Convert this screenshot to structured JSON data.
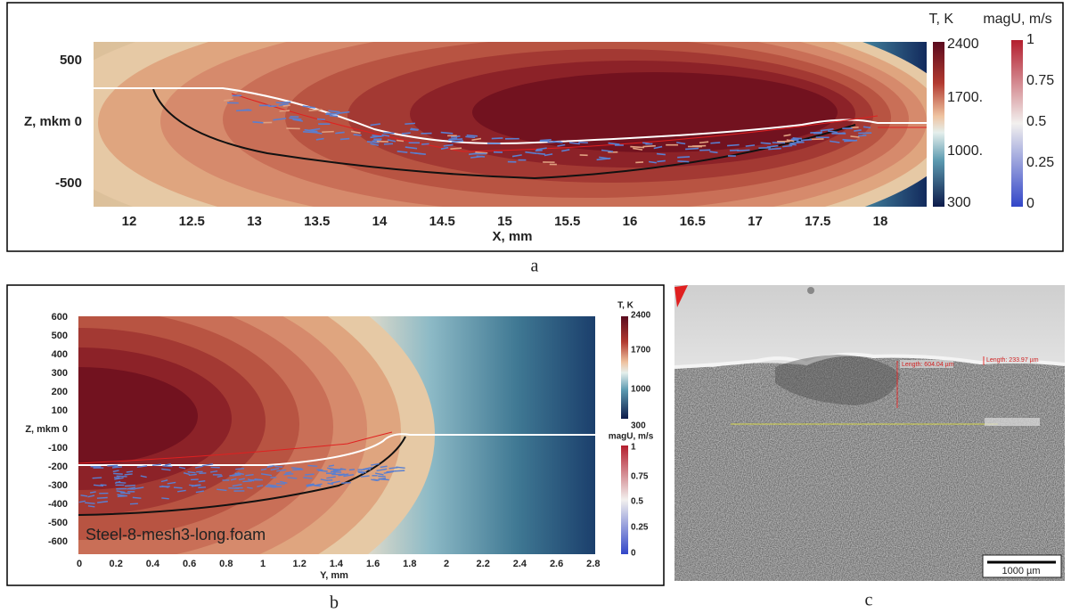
{
  "panel_a": {
    "label": "a",
    "y_ticks": [
      "500",
      "Z, mkm 0",
      "-500"
    ],
    "x_ticks": [
      "12",
      "12.5",
      "13",
      "13.5",
      "14",
      "14.5",
      "15",
      "15.5",
      "16",
      "16.5",
      "17",
      "17.5",
      "18"
    ],
    "x_title": "X, mm",
    "temp_bar": {
      "title": "T, K",
      "ticks": [
        "2400",
        "1700.",
        "1000.",
        "300"
      ]
    },
    "vel_bar": {
      "title": "magU, m/s",
      "ticks": [
        "1",
        "0.75",
        "0.5",
        "0.25",
        "0"
      ]
    }
  },
  "panel_b": {
    "label": "b",
    "y_ticks": [
      "600",
      "500",
      "400",
      "300",
      "200",
      "100",
      "Z, mkm 0",
      "-100",
      "-200",
      "-300",
      "-400",
      "-500",
      "-600"
    ],
    "x_ticks": [
      "0",
      "0.2",
      "0.4",
      "0.6",
      "0.8",
      "1",
      "1.2",
      "1.4",
      "1.6",
      "1.8",
      "2",
      "2.2",
      "2.4",
      "2.6",
      "2.8"
    ],
    "x_title": "Y, mm",
    "caption": "Steel-8-mesh3-long.foam",
    "temp_bar": {
      "title": "T, K",
      "ticks": [
        "2400",
        "1700",
        "1000",
        "300"
      ]
    },
    "vel_bar": {
      "title": "magU, m/s",
      "ticks": [
        "1",
        "0.75",
        "0.5",
        "0.25",
        "0"
      ]
    }
  },
  "panel_c": {
    "label": "c",
    "measure_1": "Length: 604.04 µm",
    "measure_2": "Length: 233.97 µm",
    "scale_bar": "1000 µm"
  }
}
